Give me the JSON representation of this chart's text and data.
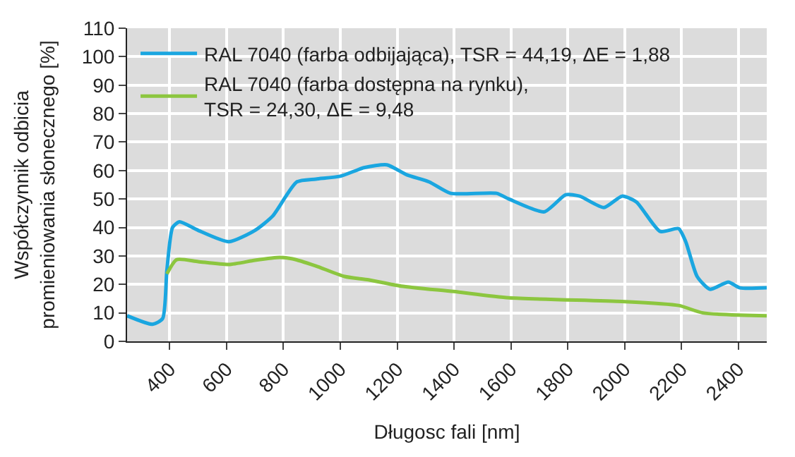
{
  "chart_data": {
    "type": "line",
    "xlabel": "Długosc fali [nm]",
    "ylabel": "Współczynnik odbicia\npromieniowania słonecznego [%]",
    "xlim": [
      250,
      2500
    ],
    "xticks": [
      400,
      600,
      800,
      1000,
      1200,
      1400,
      1600,
      1800,
      2000,
      2200,
      2400
    ],
    "ylim": [
      0,
      110
    ],
    "yticks": [
      0,
      10,
      20,
      30,
      40,
      50,
      60,
      70,
      80,
      90,
      100,
      110
    ],
    "grid": true,
    "legend": "top left",
    "marker": "none",
    "line_style": "solid",
    "series": [
      {
        "name": "RAL 7040 (farba odbijająca), TSR = 44,19, ΔE = 1,88",
        "color": "#1aa6e0",
        "x": [
          250,
          340,
          375,
          390,
          410,
          434,
          500,
          608,
          700,
          762,
          847,
          914,
          1000,
          1083,
          1164,
          1234,
          1313,
          1388,
          1550,
          1593,
          1717,
          1793,
          1842,
          1927,
          1991,
          2041,
          2125,
          2190,
          2215,
          2255,
          2300,
          2365,
          2405,
          2500
        ],
        "values": [
          9,
          6,
          8,
          25,
          40,
          42,
          39,
          35,
          39,
          44,
          56,
          57,
          58,
          61,
          62,
          58.5,
          56,
          52,
          52,
          50,
          45.5,
          51.5,
          51,
          47,
          51,
          49,
          38.6,
          39.6,
          35,
          22.8,
          18.3,
          20.8,
          18.8,
          18.8
        ]
      },
      {
        "name": "RAL 7040 (farba dostępna na rynku),\nTSR = 24,30, ΔE = 9,48",
        "color": "#8cc63f",
        "x": [
          390,
          424,
          500,
          608,
          700,
          787,
          832,
          914,
          1015,
          1099,
          1214,
          1398,
          1593,
          1991,
          2190,
          2275,
          2500
        ],
        "values": [
          23.7,
          28.7,
          28,
          27,
          28.5,
          29.5,
          29,
          26.5,
          22.8,
          21.6,
          19.4,
          17.5,
          15.3,
          14,
          12.6,
          10,
          9
        ]
      }
    ]
  }
}
